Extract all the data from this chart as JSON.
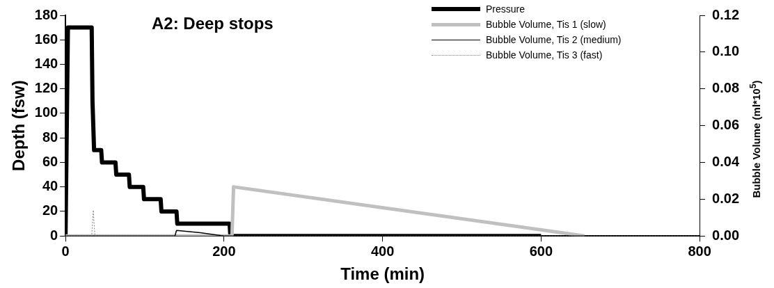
{
  "chart_data": {
    "type": "line",
    "title": "A2: Deep stops",
    "xlabel": "Time (min)",
    "ylabel": "Depth (fsw)",
    "y2label": "Bubble Volume (ml*10$^{5}$)",
    "xlim": [
      0,
      800
    ],
    "xticks": [
      0,
      200,
      400,
      600,
      800
    ],
    "ylim": [
      0,
      180
    ],
    "yticks": [
      0,
      20,
      40,
      60,
      80,
      100,
      120,
      140,
      160,
      180
    ],
    "y2lim": [
      0,
      0.12
    ],
    "y2ticks": [
      {
        "value": 0,
        "label": "0.00"
      },
      {
        "value": 0.02,
        "label": "0.02"
      },
      {
        "value": 0.04,
        "label": "0.04"
      },
      {
        "value": 0.06,
        "label": "0.06"
      },
      {
        "value": 0.08,
        "label": "0.08"
      },
      {
        "value": 0.1,
        "label": "0.10"
      },
      {
        "value": 0.12,
        "label": "0.12"
      }
    ],
    "grid": false,
    "legend": "top right",
    "marker": "none",
    "series": [
      {
        "name": "Pressure",
        "color": "#000000",
        "x": [
          0,
          3,
          33,
          34,
          36,
          45,
          46,
          63,
          64,
          80,
          81,
          98,
          99,
          120,
          121,
          140,
          141,
          207,
          208,
          600
        ],
        "values": [
          0,
          170,
          170,
          110,
          70,
          70,
          60,
          60,
          50,
          50,
          40,
          40,
          30,
          30,
          20,
          20,
          10,
          10,
          0,
          0
        ]
      },
      {
        "name": "Bubble Volume, Tis 1 (slow)",
        "color": "#c0c0c0",
        "axis": "y2",
        "x": [
          0,
          210,
          212,
          655
        ],
        "values": [
          0,
          0,
          0.0267,
          0
        ]
      },
      {
        "name": "Bubble Volume, Tis 2 (medium)",
        "color": "#000000",
        "axis": "y2",
        "x": [
          0,
          138,
          140,
          170,
          200,
          800
        ],
        "values": [
          0,
          0,
          0.003,
          0.0018,
          0,
          0
        ]
      },
      {
        "name": "Bubble Volume, Tis 3 (fast)",
        "color": "#808080",
        "axis": "y2",
        "line_style": "dotted",
        "x": [
          0,
          33,
          35,
          37,
          800
        ],
        "values": [
          0,
          0,
          0.014,
          0,
          0
        ]
      }
    ]
  }
}
